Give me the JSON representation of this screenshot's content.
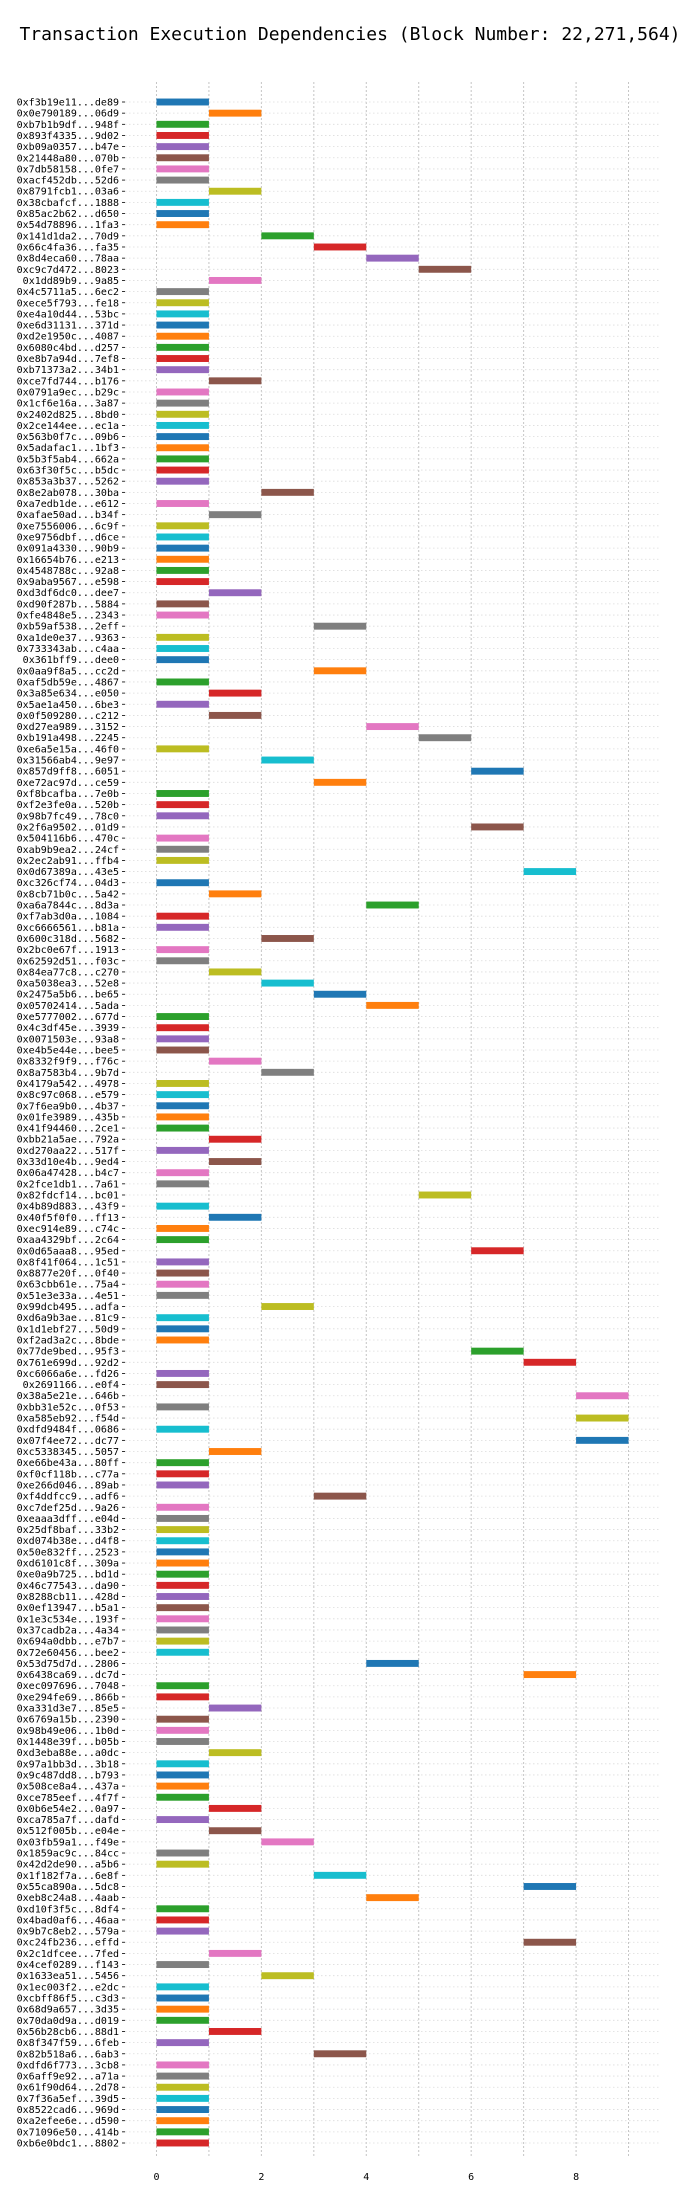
{
  "chart_data": {
    "type": "bar",
    "orientation": "horizontal-gantt",
    "title": "Transaction Execution Dependencies (Block Number: 22,271,564)",
    "xlabel": "",
    "ylabel": "",
    "xlim": [
      -0.6,
      9.6
    ],
    "xticks": [
      0,
      2,
      4,
      6,
      8
    ],
    "grid": true,
    "bar_length": 1,
    "palette": [
      "#1f77b4",
      "#ff7f0e",
      "#2ca02c",
      "#d62728",
      "#9467bd",
      "#8c564b",
      "#e377c2",
      "#7f7f7f",
      "#bcbd22",
      "#17becf"
    ],
    "transactions": [
      {
        "label": "0xf3b19e11...de89",
        "start": 0
      },
      {
        "label": "0x0e790189...06d9",
        "start": 1
      },
      {
        "label": "0xb7b1b9df...948f",
        "start": 0
      },
      {
        "label": "0x893f4335...9d02",
        "start": 0
      },
      {
        "label": "0xb09a0357...b47e",
        "start": 0
      },
      {
        "label": "0x21448a80...070b",
        "start": 0
      },
      {
        "label": "0x7db58158...0fe7",
        "start": 0
      },
      {
        "label": "0xacf452db...52d6",
        "start": 0
      },
      {
        "label": "0x8791fcb1...03a6",
        "start": 1
      },
      {
        "label": "0x38cbafcf...1888",
        "start": 0
      },
      {
        "label": "0x85ac2b62...d650",
        "start": 0
      },
      {
        "label": "0x54d78896...1fa3",
        "start": 0
      },
      {
        "label": "0x141d1da2...70d9",
        "start": 2
      },
      {
        "label": "0x66c4fa36...fa35",
        "start": 3
      },
      {
        "label": "0x8d4eca60...78aa",
        "start": 4
      },
      {
        "label": "0xc9c7d472...8023",
        "start": 5
      },
      {
        "label": "0x1dd89b9...9a85",
        "start": 1
      },
      {
        "label": "0x4c5711a5...6ec2",
        "start": 0
      },
      {
        "label": "0xece5f793...fe18",
        "start": 0
      },
      {
        "label": "0xe4a10d44...53bc",
        "start": 0
      },
      {
        "label": "0xe6d31131...371d",
        "start": 0
      },
      {
        "label": "0xd2e1950c...4087",
        "start": 0
      },
      {
        "label": "0x6080c4bd...d257",
        "start": 0
      },
      {
        "label": "0xe8b7a94d...7ef8",
        "start": 0
      },
      {
        "label": "0xb71373a2...34b1",
        "start": 0
      },
      {
        "label": "0xce7fd744...b176",
        "start": 1
      },
      {
        "label": "0x0791a9ec...b29c",
        "start": 0
      },
      {
        "label": "0x1cf6e16a...3a87",
        "start": 0
      },
      {
        "label": "0x2402d825...8bd0",
        "start": 0
      },
      {
        "label": "0x2ce144ee...ec1a",
        "start": 0
      },
      {
        "label": "0x563b0f7c...09b6",
        "start": 0
      },
      {
        "label": "0x5adafac1...1bf3",
        "start": 0
      },
      {
        "label": "0x5b3f5ab4...662a",
        "start": 0
      },
      {
        "label": "0x63f30f5c...b5dc",
        "start": 0
      },
      {
        "label": "0x853a3b37...5262",
        "start": 0
      },
      {
        "label": "0x8e2ab078...30ba",
        "start": 2
      },
      {
        "label": "0xa7edb1de...e612",
        "start": 0
      },
      {
        "label": "0xafae50ad...b34f",
        "start": 1
      },
      {
        "label": "0xe7556006...6c9f",
        "start": 0
      },
      {
        "label": "0xe9756dbf...d6ce",
        "start": 0
      },
      {
        "label": "0x091a4330...90b9",
        "start": 0
      },
      {
        "label": "0x16654b76...e213",
        "start": 0
      },
      {
        "label": "0x4548788c...92a8",
        "start": 0
      },
      {
        "label": "0x9aba9567...e598",
        "start": 0
      },
      {
        "label": "0xd3df6dc0...dee7",
        "start": 1
      },
      {
        "label": "0xd90f287b...5884",
        "start": 0
      },
      {
        "label": "0xfe4848e5...2343",
        "start": 0
      },
      {
        "label": "0xb59af538...2eff",
        "start": 3
      },
      {
        "label": "0xa1de0e37...9363",
        "start": 0
      },
      {
        "label": "0x733343ab...c4aa",
        "start": 0
      },
      {
        "label": "0x361bff9...dee0",
        "start": 0
      },
      {
        "label": "0x0aa9f8a5...cc2d",
        "start": 3
      },
      {
        "label": "0xaf5db59e...4867",
        "start": 0
      },
      {
        "label": "0x3a85e634...e050",
        "start": 1
      },
      {
        "label": "0x5ae1a450...6be3",
        "start": 0
      },
      {
        "label": "0x0f509280...c212",
        "start": 1
      },
      {
        "label": "0xd27ea989...3152",
        "start": 4
      },
      {
        "label": "0xb191a498...2245",
        "start": 5
      },
      {
        "label": "0xe6a5e15a...46f0",
        "start": 0
      },
      {
        "label": "0x31566ab4...9e97",
        "start": 2
      },
      {
        "label": "0x857d9ff8...6051",
        "start": 6
      },
      {
        "label": "0xe72ac97d...ce59",
        "start": 3
      },
      {
        "label": "0xf8bcafba...7e0b",
        "start": 0
      },
      {
        "label": "0xf2e3fe0a...520b",
        "start": 0
      },
      {
        "label": "0x98b7fc49...78c0",
        "start": 0
      },
      {
        "label": "0x2f6a9502...01d9",
        "start": 6
      },
      {
        "label": "0x504116b6...470c",
        "start": 0
      },
      {
        "label": "0xab9b9ea2...24cf",
        "start": 0
      },
      {
        "label": "0x2ec2ab91...ffb4",
        "start": 0
      },
      {
        "label": "0x0d67389a...43e5",
        "start": 7
      },
      {
        "label": "0xc326cf74...04d3",
        "start": 0
      },
      {
        "label": "0x8cb71b0c...5a42",
        "start": 1
      },
      {
        "label": "0xa6a7844c...8d3a",
        "start": 4
      },
      {
        "label": "0xf7ab3d0a...1084",
        "start": 0
      },
      {
        "label": "0xc6666561...b81a",
        "start": 0
      },
      {
        "label": "0x600c318d...5682",
        "start": 2
      },
      {
        "label": "0x2bc0e67f...1913",
        "start": 0
      },
      {
        "label": "0x62592d51...f03c",
        "start": 0
      },
      {
        "label": "0x84ea77c8...c270",
        "start": 1
      },
      {
        "label": "0xa5038ea3...52e8",
        "start": 2
      },
      {
        "label": "0x2475a5b6...be65",
        "start": 3
      },
      {
        "label": "0x05702414...5ada",
        "start": 4
      },
      {
        "label": "0xe5777002...677d",
        "start": 0
      },
      {
        "label": "0x4c3df45e...3939",
        "start": 0
      },
      {
        "label": "0x0071503e...93a8",
        "start": 0
      },
      {
        "label": "0xe4b5e44e...bee5",
        "start": 0
      },
      {
        "label": "0x8332f9f9...f76c",
        "start": 1
      },
      {
        "label": "0x8a7583b4...9b7d",
        "start": 2
      },
      {
        "label": "0x4179a542...4978",
        "start": 0
      },
      {
        "label": "0x8c97c068...e579",
        "start": 0
      },
      {
        "label": "0x7f6ea9b0...4b37",
        "start": 0
      },
      {
        "label": "0x01fe3989...435b",
        "start": 0
      },
      {
        "label": "0x41f94460...2ce1",
        "start": 0
      },
      {
        "label": "0xbb21a5ae...792a",
        "start": 1
      },
      {
        "label": "0xd270aa22...517f",
        "start": 0
      },
      {
        "label": "0x33d10e4b...9ed4",
        "start": 1
      },
      {
        "label": "0x06a47428...b4c7",
        "start": 0
      },
      {
        "label": "0x2fce1db1...7a61",
        "start": 0
      },
      {
        "label": "0x82fdcf14...bc01",
        "start": 5
      },
      {
        "label": "0x4b89d883...43f9",
        "start": 0
      },
      {
        "label": "0x40f5f0f0...ff13",
        "start": 1
      },
      {
        "label": "0xec914e89...c74c",
        "start": 0
      },
      {
        "label": "0xaa4329bf...2c64",
        "start": 0
      },
      {
        "label": "0x0d65aaa8...95ed",
        "start": 6
      },
      {
        "label": "0x8f41f064...1c51",
        "start": 0
      },
      {
        "label": "0x8877e20f...0f40",
        "start": 0
      },
      {
        "label": "0x63cbb61e...75a4",
        "start": 0
      },
      {
        "label": "0x51e3e33a...4e51",
        "start": 0
      },
      {
        "label": "0x99dcb495...adfa",
        "start": 2
      },
      {
        "label": "0xd6a9b3ae...81c9",
        "start": 0
      },
      {
        "label": "0x1d1ebf27...50d9",
        "start": 0
      },
      {
        "label": "0xf2ad3a2c...8bde",
        "start": 0
      },
      {
        "label": "0x77de9bed...95f3",
        "start": 6
      },
      {
        "label": "0x761e699d...92d2",
        "start": 7
      },
      {
        "label": "0xc6066a6e...fd26",
        "start": 0
      },
      {
        "label": "0x2691166...e0f4",
        "start": 0
      },
      {
        "label": "0x38a5e21e...646b",
        "start": 8
      },
      {
        "label": "0xbb31e52c...0f53",
        "start": 0
      },
      {
        "label": "0xa585eb92...f54d",
        "start": 8
      },
      {
        "label": "0xdfd9484f...0686",
        "start": 0
      },
      {
        "label": "0x07f4ee72...dc77",
        "start": 8
      },
      {
        "label": "0xc5338345...5057",
        "start": 1
      },
      {
        "label": "0xe66be43a...80ff",
        "start": 0
      },
      {
        "label": "0xf0cf118b...c77a",
        "start": 0
      },
      {
        "label": "0xe266d046...89ab",
        "start": 0
      },
      {
        "label": "0xf4ddfcc9...adf6",
        "start": 3
      },
      {
        "label": "0xc7def25d...9a26",
        "start": 0
      },
      {
        "label": "0xeaaa3dff...e04d",
        "start": 0
      },
      {
        "label": "0x25df8baf...33b2",
        "start": 0
      },
      {
        "label": "0xd074b38e...d4f8",
        "start": 0
      },
      {
        "label": "0x50e832ff...2523",
        "start": 0
      },
      {
        "label": "0xd6101c8f...309a",
        "start": 0
      },
      {
        "label": "0xe0a9b725...bd1d",
        "start": 0
      },
      {
        "label": "0x46c77543...da90",
        "start": 0
      },
      {
        "label": "0x8288cb11...428d",
        "start": 0
      },
      {
        "label": "0x0ef13947...b5a1",
        "start": 0
      },
      {
        "label": "0x1e3c534e...193f",
        "start": 0
      },
      {
        "label": "0x37cadb2a...4a34",
        "start": 0
      },
      {
        "label": "0x694a0dbb...e7b7",
        "start": 0
      },
      {
        "label": "0x72e60456...bee2",
        "start": 0
      },
      {
        "label": "0x53d75d7d...2806",
        "start": 4
      },
      {
        "label": "0x6438ca69...dc7d",
        "start": 7
      },
      {
        "label": "0xec097696...7048",
        "start": 0
      },
      {
        "label": "0xe294fe69...866b",
        "start": 0
      },
      {
        "label": "0xa331d3e7...85e5",
        "start": 1
      },
      {
        "label": "0x6769a15b...2390",
        "start": 0
      },
      {
        "label": "0x98b49e06...1b0d",
        "start": 0
      },
      {
        "label": "0x1448e39f...b05b",
        "start": 0
      },
      {
        "label": "0xd3eba88e...a0dc",
        "start": 1
      },
      {
        "label": "0x97a1bb3d...3b18",
        "start": 0
      },
      {
        "label": "0x9c487dd8...b793",
        "start": 0
      },
      {
        "label": "0x508ce8a4...437a",
        "start": 0
      },
      {
        "label": "0xce785eef...4f7f",
        "start": 0
      },
      {
        "label": "0x0b6e54e2...0a97",
        "start": 1
      },
      {
        "label": "0xca785a7f...dafd",
        "start": 0
      },
      {
        "label": "0x512f005b...e04e",
        "start": 1
      },
      {
        "label": "0x03fb59a1...f49e",
        "start": 2
      },
      {
        "label": "0x1859ac9c...84cc",
        "start": 0
      },
      {
        "label": "0x42d2de90...a5b6",
        "start": 0
      },
      {
        "label": "0x1f182f7a...6e8f",
        "start": 3
      },
      {
        "label": "0x55ca890a...5dc8",
        "start": 7
      },
      {
        "label": "0xeb8c24a8...4aab",
        "start": 4
      },
      {
        "label": "0xd10f3f5c...8df4",
        "start": 0
      },
      {
        "label": "0x4bad0af6...46aa",
        "start": 0
      },
      {
        "label": "0x9b7c8eb2...579a",
        "start": 0
      },
      {
        "label": "0xc24fb236...effd",
        "start": 7
      },
      {
        "label": "0x2c1dfcee...7fed",
        "start": 1
      },
      {
        "label": "0x4cef0289...f143",
        "start": 0
      },
      {
        "label": "0x1633ea51...5456",
        "start": 2
      },
      {
        "label": "0x1ec003f2...e2dc",
        "start": 0
      },
      {
        "label": "0xcbff86f5...c3d3",
        "start": 0
      },
      {
        "label": "0x68d9a657...3d35",
        "start": 0
      },
      {
        "label": "0x70da0d9a...d019",
        "start": 0
      },
      {
        "label": "0x56b28cb6...88d1",
        "start": 1
      },
      {
        "label": "0x8f347f59...6feb",
        "start": 0
      },
      {
        "label": "0x82b518a6...6ab3",
        "start": 3
      },
      {
        "label": "0xdfd6f773...3cb8",
        "start": 0
      },
      {
        "label": "0x6aff9e92...a71a",
        "start": 0
      },
      {
        "label": "0x61f90d64...2d78",
        "start": 0
      },
      {
        "label": "0x7f36a5ef...39d5",
        "start": 0
      },
      {
        "label": "0x8522cad6...969d",
        "start": 0
      },
      {
        "label": "0xa2efee6e...d590",
        "start": 0
      },
      {
        "label": "0x71096e50...414b",
        "start": 0
      },
      {
        "label": "0xb6e0bdc1...8802",
        "start": 0
      }
    ]
  }
}
